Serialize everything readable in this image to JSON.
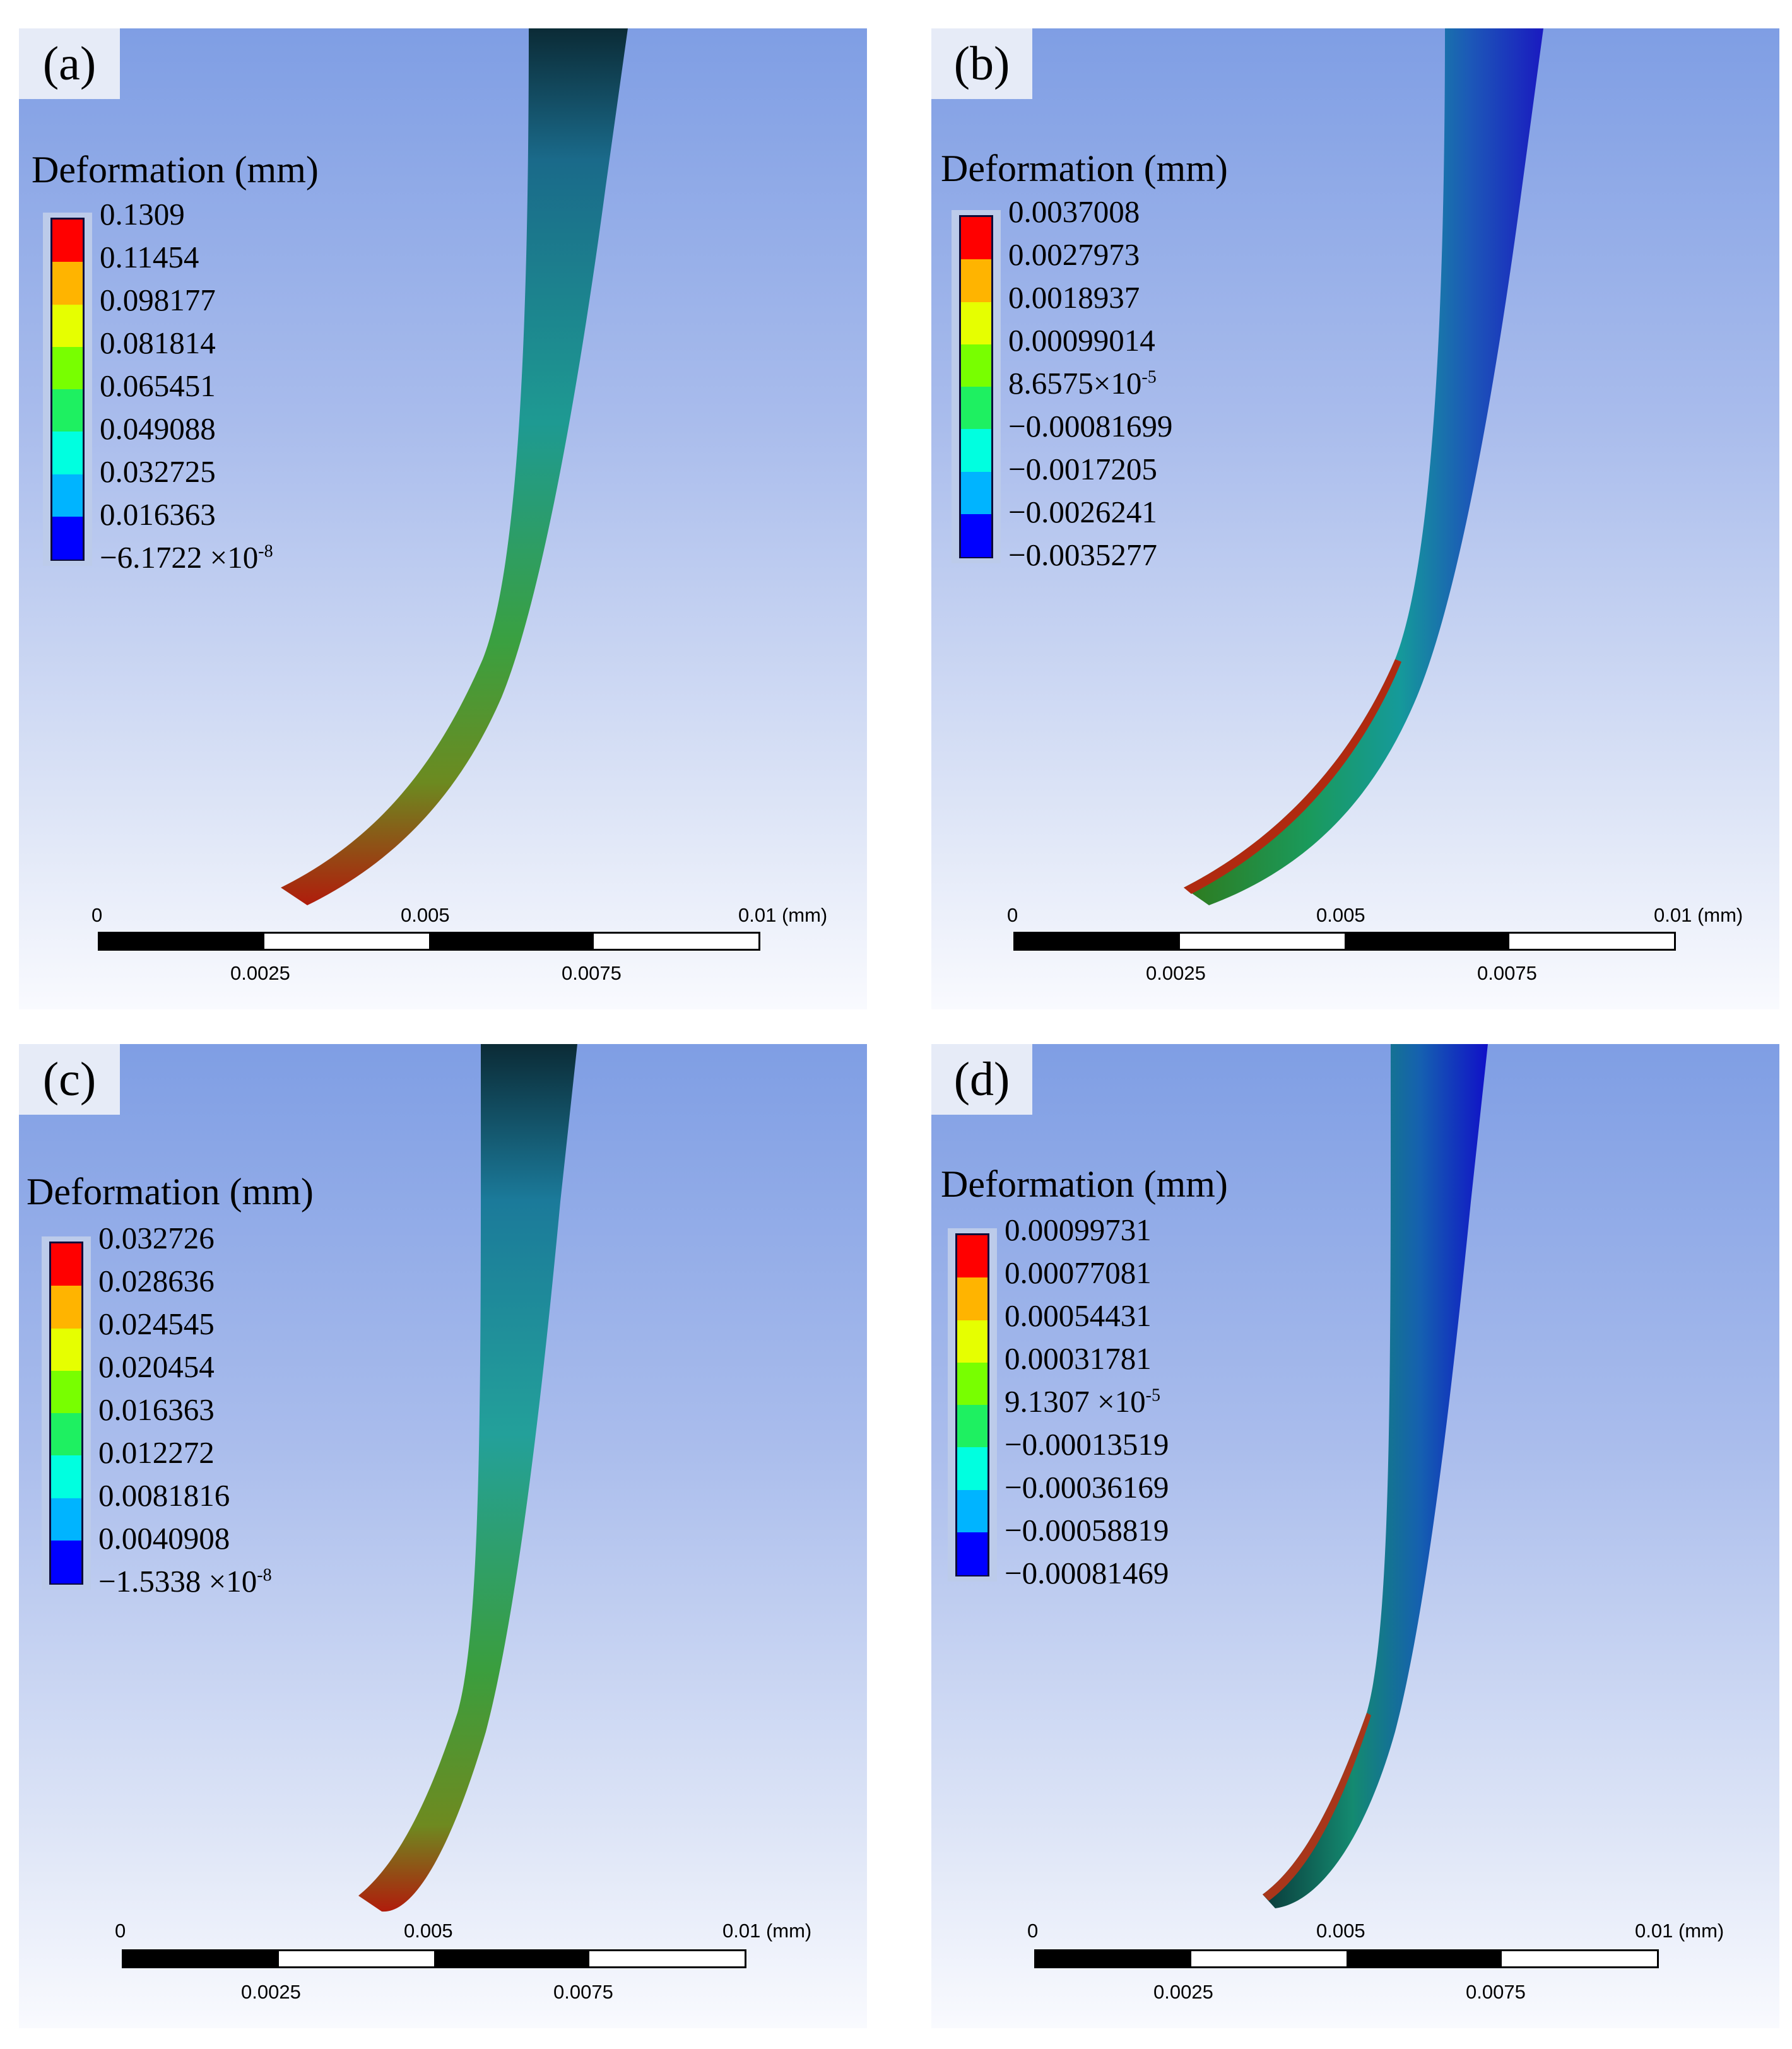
{
  "figure": {
    "legend_colors": [
      "#ff0000",
      "#ffb400",
      "#e6ff00",
      "#78ff00",
      "#1ef061",
      "#00ffe0",
      "#00b4ff",
      "#0000ff"
    ],
    "panels": [
      {
        "label": "(a)",
        "legend_title": "Deformation (mm)",
        "legend_values": [
          {
            "text": "0.1309"
          },
          {
            "text": "0.11454"
          },
          {
            "text": "0.098177"
          },
          {
            "text": "0.081814"
          },
          {
            "text": "0.065451"
          },
          {
            "text": "0.049088"
          },
          {
            "text": "0.032725"
          },
          {
            "text": "0.016363"
          },
          {
            "text": "−6.1722 ×10",
            "exp": "-8"
          }
        ],
        "scale": {
          "tick0": "0",
          "tick_mid": "0.005",
          "tick_end": "0.01 (mm)",
          "tick_q1": "0.0025",
          "tick_q3": "0.0075"
        }
      },
      {
        "label": "(b)",
        "legend_title": "Deformation (mm)",
        "legend_values": [
          {
            "text": "0.0037008"
          },
          {
            "text": "0.0027973"
          },
          {
            "text": "0.0018937"
          },
          {
            "text": "0.00099014"
          },
          {
            "text": "8.6575×10",
            "exp": "-5"
          },
          {
            "text": "−0.00081699"
          },
          {
            "text": "−0.0017205"
          },
          {
            "text": "−0.0026241"
          },
          {
            "text": "−0.0035277"
          }
        ],
        "scale": {
          "tick0": "0",
          "tick_mid": "0.005",
          "tick_end": "0.01 (mm)",
          "tick_q1": "0.0025",
          "tick_q3": "0.0075"
        }
      },
      {
        "label": "(c)",
        "legend_title": "Deformation (mm)",
        "legend_values": [
          {
            "text": "0.032726"
          },
          {
            "text": "0.028636"
          },
          {
            "text": "0.024545"
          },
          {
            "text": "0.020454"
          },
          {
            "text": "0.016363"
          },
          {
            "text": "0.012272"
          },
          {
            "text": "0.0081816"
          },
          {
            "text": "0.0040908"
          },
          {
            "text": "−1.5338 ×10",
            "exp": "-8"
          }
        ],
        "scale": {
          "tick0": "0",
          "tick_mid": "0.005",
          "tick_end": "0.01 (mm)",
          "tick_q1": "0.0025",
          "tick_q3": "0.0075"
        }
      },
      {
        "label": "(d)",
        "legend_title": "Deformation (mm)",
        "legend_values": [
          {
            "text": "0.00099731"
          },
          {
            "text": "0.00077081"
          },
          {
            "text": "0.00054431"
          },
          {
            "text": "0.00031781"
          },
          {
            "text": "9.1307 ×10",
            "exp": "-5"
          },
          {
            "text": "−0.00013519"
          },
          {
            "text": "−0.00036169"
          },
          {
            "text": "−0.00058819"
          },
          {
            "text": "−0.00081469"
          }
        ],
        "scale": {
          "tick0": "0",
          "tick_mid": "0.005",
          "tick_end": "0.01 (mm)",
          "tick_q1": "0.0025",
          "tick_q3": "0.0075"
        }
      }
    ]
  }
}
